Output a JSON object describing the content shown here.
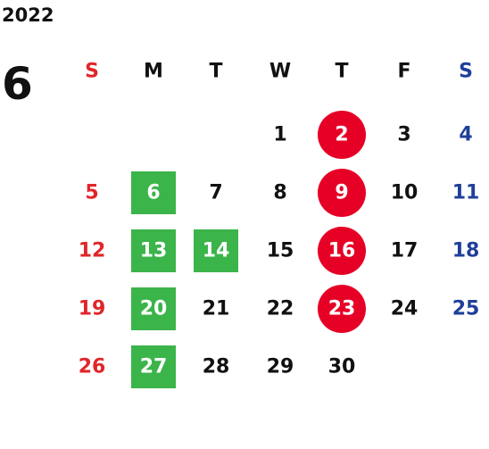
{
  "year": "2022",
  "month": "6",
  "weekdays": [
    "S",
    "M",
    "T",
    "W",
    "T",
    "F",
    "S"
  ],
  "sunday_color": "#e0262a",
  "saturday_color": "#1f3f9a",
  "text_color": "#111111",
  "circle_color": "#e60026",
  "square_color": "#3bb44a",
  "weeks": [
    [
      null,
      null,
      null,
      {
        "day": "1"
      },
      {
        "day": "2",
        "highlight": "circle"
      },
      {
        "day": "3"
      },
      {
        "day": "4"
      }
    ],
    [
      {
        "day": "5"
      },
      {
        "day": "6",
        "highlight": "square"
      },
      {
        "day": "7"
      },
      {
        "day": "8"
      },
      {
        "day": "9",
        "highlight": "circle"
      },
      {
        "day": "10"
      },
      {
        "day": "11"
      }
    ],
    [
      {
        "day": "12"
      },
      {
        "day": "13",
        "highlight": "square"
      },
      {
        "day": "14",
        "highlight": "square"
      },
      {
        "day": "15"
      },
      {
        "day": "16",
        "highlight": "circle"
      },
      {
        "day": "17"
      },
      {
        "day": "18"
      }
    ],
    [
      {
        "day": "19"
      },
      {
        "day": "20",
        "highlight": "square"
      },
      {
        "day": "21"
      },
      {
        "day": "22"
      },
      {
        "day": "23",
        "highlight": "circle"
      },
      {
        "day": "24"
      },
      {
        "day": "25"
      }
    ],
    [
      {
        "day": "26"
      },
      {
        "day": "27",
        "highlight": "square"
      },
      {
        "day": "28"
      },
      {
        "day": "29"
      },
      {
        "day": "30"
      },
      null,
      null
    ]
  ]
}
